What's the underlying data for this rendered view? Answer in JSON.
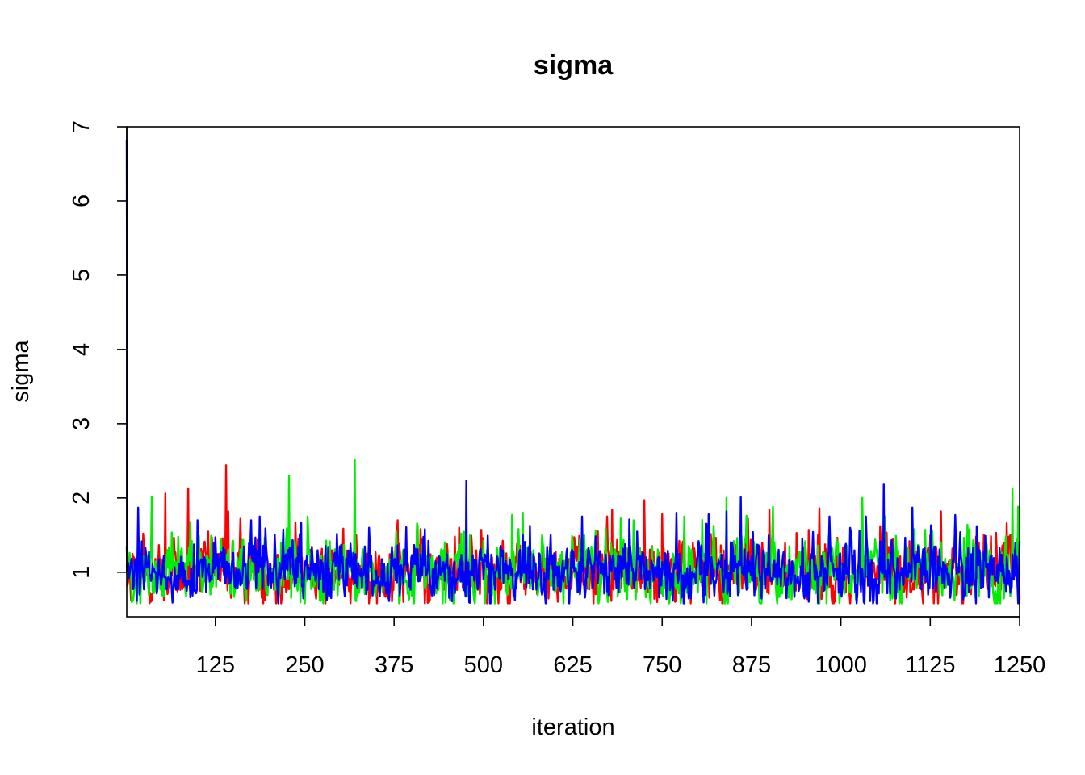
{
  "chart_data": {
    "type": "line",
    "title": "sigma",
    "xlabel": "iteration",
    "ylabel": "sigma",
    "xlim": [
      1,
      1250
    ],
    "ylim": [
      0.4,
      7
    ],
    "x_ticks": [
      125,
      250,
      375,
      500,
      625,
      750,
      875,
      1000,
      1125,
      1250
    ],
    "y_ticks": [
      1,
      2,
      3,
      4,
      5,
      6,
      7
    ],
    "grid": false,
    "legend": "none",
    "iterations": 1250,
    "series": [
      {
        "color": "#ff0000",
        "baseline": 1.0,
        "spread": 0.2,
        "start": 1.35,
        "spikes": [
          [
            55,
            2.06
          ],
          [
            87,
            2.13
          ],
          [
            140,
            2.44
          ],
          [
            143,
            1.82
          ],
          [
            160,
            1.72
          ],
          [
            380,
            1.7
          ],
          [
            412,
            1.58
          ],
          [
            460,
            1.48
          ],
          [
            660,
            1.55
          ],
          [
            680,
            1.84
          ],
          [
            725,
            1.97
          ],
          [
            750,
            1.78
          ],
          [
            870,
            1.72
          ],
          [
            900,
            1.84
          ],
          [
            970,
            1.86
          ],
          [
            1030,
            1.72
          ],
          [
            1140,
            1.82
          ],
          [
            1200,
            1.5
          ],
          [
            1235,
            1.48
          ]
        ]
      },
      {
        "color": "#00ee00",
        "baseline": 1.0,
        "spread": 0.2,
        "start": 1.1,
        "spikes": [
          [
            36,
            2.02
          ],
          [
            90,
            1.68
          ],
          [
            228,
            2.3
          ],
          [
            320,
            2.51
          ],
          [
            540,
            1.77
          ],
          [
            555,
            1.8
          ],
          [
            710,
            1.7
          ],
          [
            840,
            2.0
          ],
          [
            868,
            1.76
          ],
          [
            905,
            1.88
          ],
          [
            1030,
            2.0
          ],
          [
            1103,
            1.58
          ],
          [
            1180,
            1.58
          ],
          [
            1240,
            2.12
          ],
          [
            1248,
            1.88
          ]
        ]
      },
      {
        "color": "#0000ff",
        "baseline": 1.0,
        "spread": 0.18,
        "start": 6.82,
        "spikes": [
          [
            17,
            1.87
          ],
          [
            100,
            1.7
          ],
          [
            175,
            1.7
          ],
          [
            245,
            1.67
          ],
          [
            340,
            1.6
          ],
          [
            418,
            1.58
          ],
          [
            476,
            2.23
          ],
          [
            555,
            1.5
          ],
          [
            770,
            1.8
          ],
          [
            815,
            1.78
          ],
          [
            840,
            1.82
          ],
          [
            860,
            2.01
          ],
          [
            1060,
            2.19
          ],
          [
            1100,
            1.87
          ],
          [
            1160,
            1.77
          ],
          [
            1190,
            1.62
          ],
          [
            1250,
            1.42
          ]
        ]
      }
    ]
  }
}
